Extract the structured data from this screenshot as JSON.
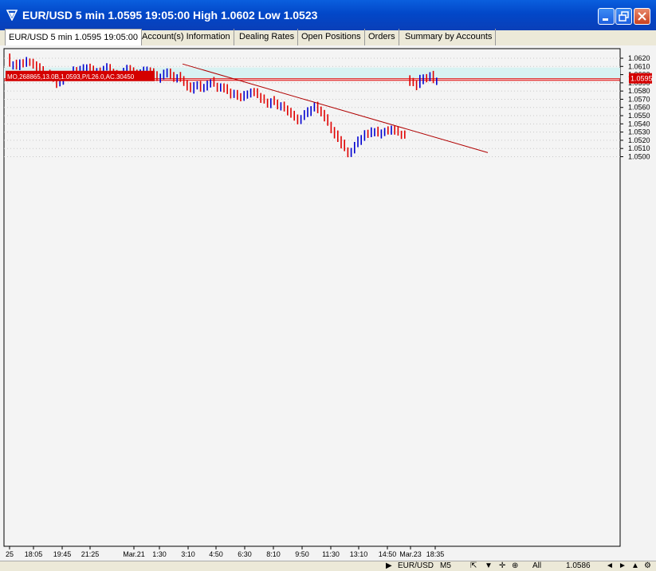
{
  "window": {
    "title": "EUR/USD 5 min 1.0595 19:05:00 High 1.0602 Low 1.0523"
  },
  "tabs": [
    {
      "label": "EUR/USD 5 min 1.0595 19:05:00",
      "active": true
    },
    {
      "label": "Account(s) Information"
    },
    {
      "label": "Dealing Rates"
    },
    {
      "label": "Open Positions"
    },
    {
      "label": "Orders"
    },
    {
      "label": "Summary by Accounts"
    }
  ],
  "status": {
    "symbol": "EUR/USD",
    "timeframe": "M5",
    "range": "All",
    "value": "1.0586"
  },
  "colors": {
    "up": "#0000d0",
    "down": "#e00000",
    "trendline": "#b00000",
    "position_band": "#d8f2f2"
  },
  "chart_data": {
    "type": "candlestick",
    "title": "",
    "xlabel": "",
    "ylabel": "",
    "ylim": [
      1.05,
      1.0625
    ],
    "y_ticks": [
      "1.0620",
      "1.0610",
      "1.0600",
      "1.0590",
      "1.0580",
      "1.0570",
      "1.0560",
      "1.0550",
      "1.0540",
      "1.0530",
      "1.0520",
      "1.0510",
      "1.0500"
    ],
    "x_ticks": [
      "25",
      "18:05",
      "19:45",
      "21:25",
      "Mar.21",
      "1:30",
      "3:10",
      "4:50",
      "6:30",
      "8:10",
      "9:50",
      "11:30",
      "13:10",
      "14:50",
      "Mar.23",
      "18:35"
    ],
    "current_price": "1.0595",
    "position_label": "MO,268865,13.0B,1.0593,P/L26.0,AC.30450",
    "position_price": 1.0593,
    "series": [
      {
        "values": [
          1.062,
          1.0612,
          1.0614,
          1.061,
          1.0615,
          1.0613,
          1.0617,
          1.0616,
          1.0612,
          1.0608,
          1.0605,
          1.0601,
          1.06,
          1.0597,
          1.0594,
          1.0588,
          1.0592,
          1.0596,
          1.0598,
          1.0601,
          1.0605,
          1.0604,
          1.0606,
          1.0609,
          1.061,
          1.0607,
          1.0603,
          1.0606,
          1.0603,
          1.0607,
          1.0608,
          1.0604,
          1.0602,
          1.0598,
          1.06,
          1.0604,
          1.0606,
          1.0605,
          1.0601,
          1.0599,
          1.0602,
          1.0604,
          1.0606,
          1.0603,
          1.0599,
          1.0595,
          1.0598,
          1.0602,
          1.0605,
          1.06,
          1.0596,
          1.0598,
          1.0594,
          1.059,
          1.0585,
          1.0581,
          1.0587,
          1.0589,
          1.0584,
          1.0586,
          1.059,
          1.0592,
          1.0588,
          1.0585,
          1.0587,
          1.0584,
          1.058,
          1.0576,
          1.0578,
          1.0574,
          1.0572,
          1.0576,
          1.0578,
          1.0581,
          1.0579,
          1.0575,
          1.0571,
          1.0568,
          1.0565,
          1.0569,
          1.0566,
          1.0562,
          1.0564,
          1.056,
          1.0556,
          1.0552,
          1.0548,
          1.0544,
          1.0547,
          1.0551,
          1.0555,
          1.0559,
          1.0562,
          1.0556,
          1.0552,
          1.0546,
          1.054,
          1.0534,
          1.0528,
          1.0522,
          1.0515,
          1.0509,
          1.0505,
          1.0508,
          1.0514,
          1.0519,
          1.0523,
          1.0528,
          1.0526,
          1.053,
          1.0532,
          1.0528,
          1.0531,
          1.0533,
          1.0531,
          1.0534,
          1.0531,
          1.0528,
          1.0526,
          1.0524
        ]
      },
      {
        "values": [
          1.0597,
          1.0592,
          1.059,
          1.0586,
          1.0594,
          1.0598,
          1.0596,
          1.0599,
          1.0592,
          1.0593
        ]
      }
    ],
    "trendline": {
      "from": {
        "index": 42,
        "price": 1.0613
      },
      "to": {
        "index": 205,
        "price": 1.0505
      }
    }
  }
}
